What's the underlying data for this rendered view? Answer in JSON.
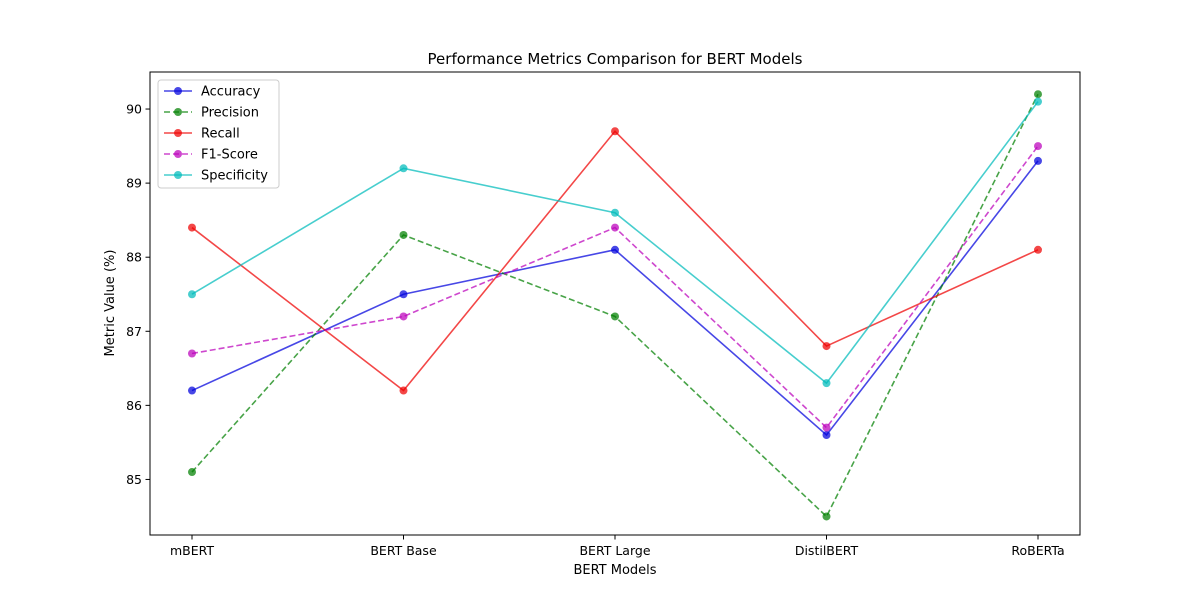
{
  "chart_data": {
    "type": "line",
    "title": "Performance Metrics Comparison for BERT Models",
    "xlabel": "BERT Models",
    "ylabel": "Metric Value (%)",
    "categories": [
      "mBERT",
      "BERT Base",
      "BERT Large",
      "DistilBERT",
      "RoBERTa"
    ],
    "ylim": [
      84.25,
      90.5
    ],
    "yticks": [
      85,
      86,
      87,
      88,
      89,
      90
    ],
    "grid": false,
    "legend_position": "upper-left",
    "series": [
      {
        "name": "Accuracy",
        "values": [
          86.2,
          87.5,
          88.1,
          85.6,
          89.3
        ],
        "color": "#0000dd",
        "linestyle": "solid"
      },
      {
        "name": "Precision",
        "values": [
          85.1,
          88.3,
          87.2,
          84.5,
          90.2
        ],
        "color": "#008000",
        "linestyle": "dashed"
      },
      {
        "name": "Recall",
        "values": [
          88.4,
          86.2,
          89.7,
          86.8,
          88.1
        ],
        "color": "#ee0000",
        "linestyle": "solid"
      },
      {
        "name": "F1-Score",
        "values": [
          86.7,
          87.2,
          88.4,
          85.7,
          89.5
        ],
        "color": "#bb00bb",
        "linestyle": "dashed"
      },
      {
        "name": "Specificity",
        "values": [
          87.5,
          89.2,
          88.6,
          86.3,
          90.1
        ],
        "color": "#00bbbb",
        "linestyle": "solid"
      }
    ]
  }
}
